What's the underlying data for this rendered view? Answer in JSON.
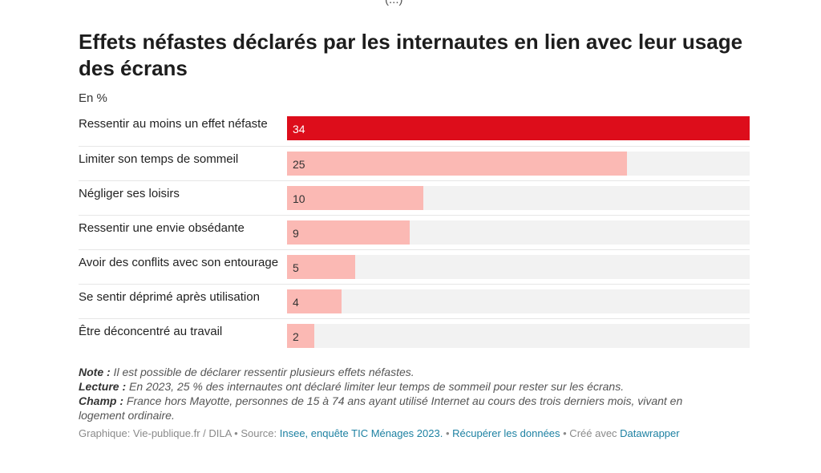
{
  "top_cut_text": "(...)",
  "title": "Effets néfastes déclarés par les internautes en lien avec leur usage des écrans",
  "subtitle": "En %",
  "colors": {
    "highlight": "#dd0d1b",
    "default": "#fbb9b4",
    "track": "#f2f2f2"
  },
  "chart_data": {
    "type": "bar",
    "orientation": "horizontal",
    "title": "Effets néfastes déclarés par les internautes en lien avec leur usage des écrans",
    "unit": "En %",
    "categories": [
      "Ressentir au moins un effet néfaste",
      "Limiter son temps de sommeil",
      "Négliger ses loisirs",
      "Ressentir une envie obsédante",
      "Avoir des conflits avec son entourage",
      "Se sentir déprimé après utilisation",
      "Être déconcentré au travail"
    ],
    "values": [
      34,
      25,
      10,
      9,
      5,
      4,
      2
    ],
    "highlighted_index": 0,
    "xlim": [
      0,
      34
    ]
  },
  "notes": {
    "note_label": "Note :",
    "note_text": " Il est possible de déclarer ressentir plusieurs effets néfastes.",
    "lecture_label": "Lecture :",
    "lecture_text": " En 2023, 25 % des internautes ont déclaré limiter leur temps de sommeil pour rester sur les écrans.",
    "champ_label": "Champ :",
    "champ_text": " France hors Mayotte, personnes de 15 à 74 ans ayant utilisé Internet au cours des trois derniers mois, vivant en logement ordinaire."
  },
  "footer": {
    "credit": "Graphique: Vie-publique.fr / DILA",
    "sep1": " • Source: ",
    "source_link": "Insee, enquête TIC Ménages 2023.",
    "sep2": " • ",
    "data_link": "Récupérer les données",
    "sep3": " • Créé avec ",
    "tool_link": "Datawrapper"
  }
}
